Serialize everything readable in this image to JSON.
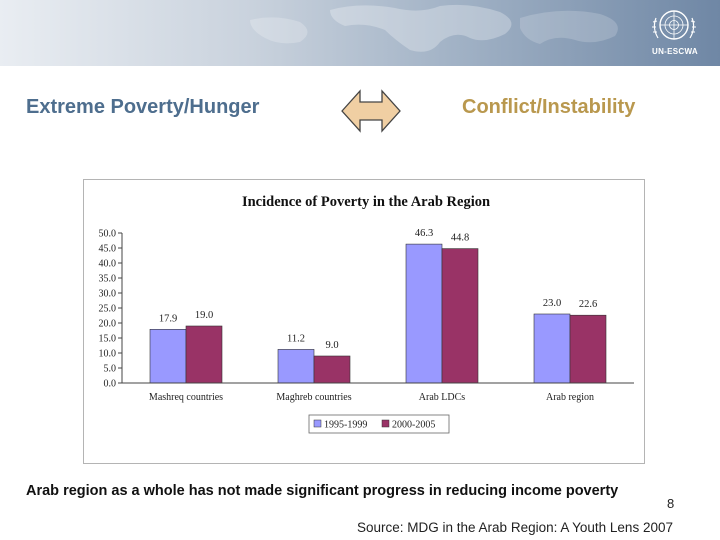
{
  "banner": {
    "logo_text": "UN-ESCWA",
    "colors": {
      "light": "#e9edf2",
      "dark": "#6f87a5"
    }
  },
  "header": {
    "left_title": "Extreme Poverty/Hunger",
    "right_title": "Conflict/Instability",
    "arrow_icon": "double-arrow-icon",
    "colors": {
      "left": "#4e6e8e",
      "right": "#b9984e",
      "arrow_fill": "#f0cfa3"
    }
  },
  "chart_data": {
    "type": "bar",
    "title": "Incidence of Poverty in the Arab Region",
    "categories": [
      "Mashreq countries",
      "Maghreb countries",
      "Arab LDCs",
      "Arab region"
    ],
    "series": [
      {
        "name": "1995-1999",
        "values": [
          17.9,
          11.2,
          46.3,
          23.0
        ],
        "labels": [
          "17.9",
          "11.2",
          "46.3",
          "23.0"
        ],
        "color": "#9999ff"
      },
      {
        "name": "2000-2005",
        "values": [
          19.0,
          9.0,
          44.8,
          22.6
        ],
        "labels": [
          "19.0",
          "9.0",
          "44.8",
          "22.6"
        ],
        "color": "#993366"
      }
    ],
    "ylim": [
      0,
      50
    ],
    "yticks": [
      "0.0",
      "5.0",
      "10.0",
      "15.0",
      "20.0",
      "25.0",
      "30.0",
      "35.0",
      "40.0",
      "45.0",
      "50.0"
    ],
    "xlabel": "",
    "ylabel": "",
    "grid": false,
    "legend": "bottom"
  },
  "caption": "Arab region as a whole has not made significant progress in reducing income poverty",
  "page_number": "8",
  "source": "Source: MDG in the Arab Region: A Youth Lens 2007"
}
